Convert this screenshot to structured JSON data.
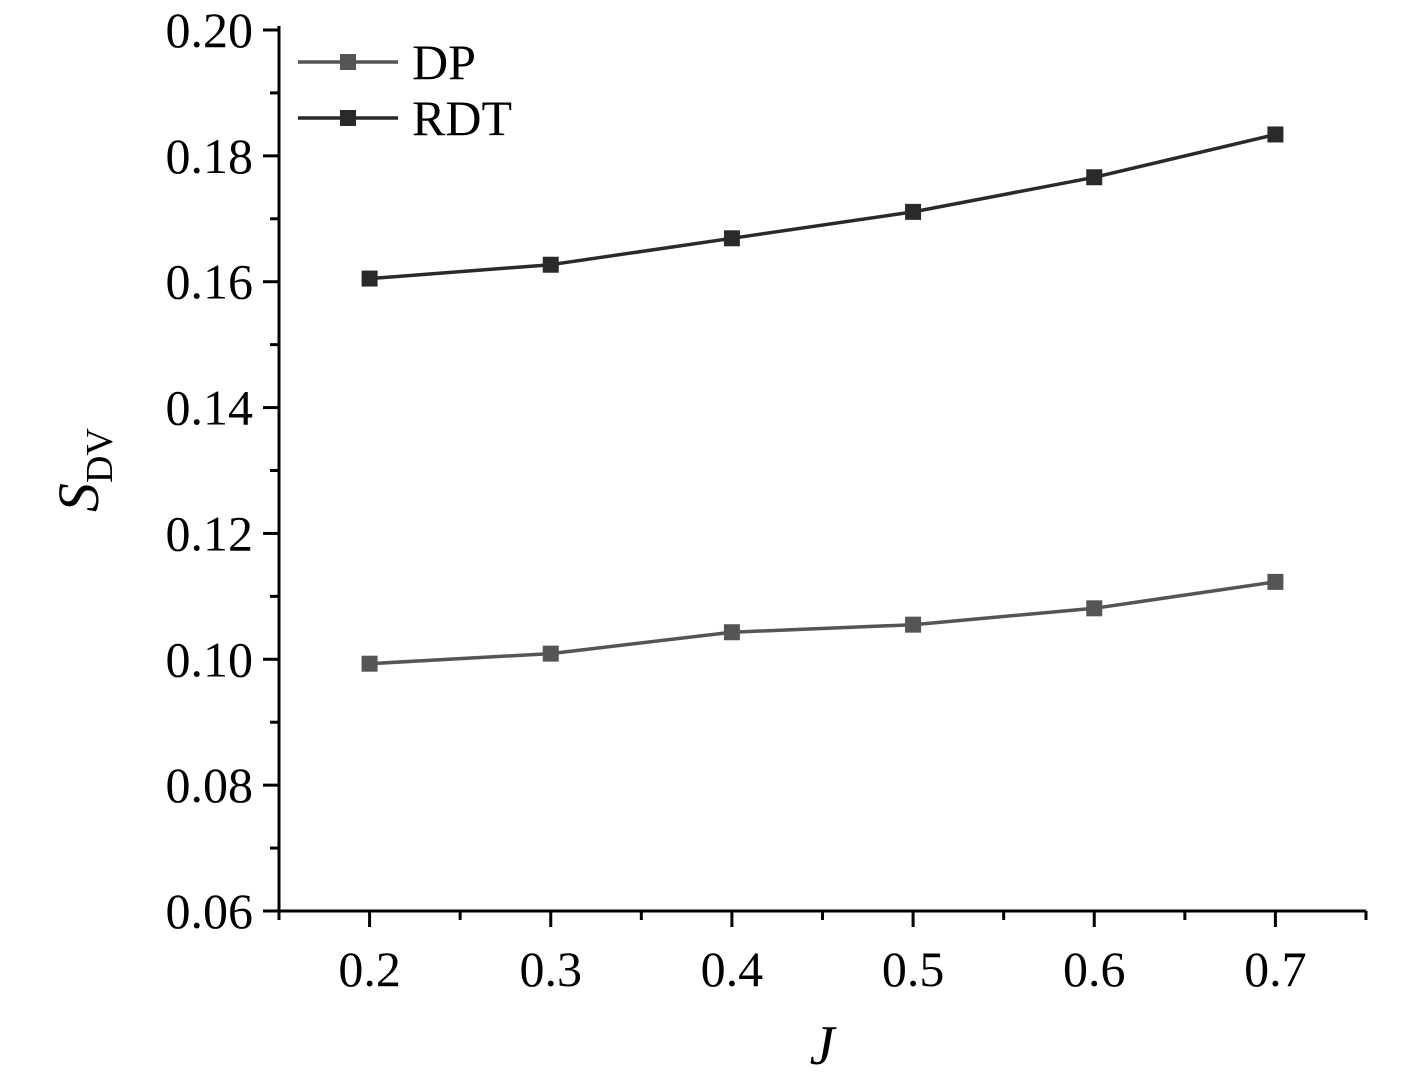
{
  "chart_data": {
    "type": "line",
    "title": "",
    "xlabel": "J",
    "ylabel": "S",
    "ylabel_sub": "DV",
    "x": [
      0.2,
      0.3,
      0.4,
      0.5,
      0.6,
      0.7
    ],
    "x_ticks": [
      "0.2",
      "0.3",
      "0.4",
      "0.5",
      "0.6",
      "0.7"
    ],
    "xlim": [
      0.15,
      0.75
    ],
    "ylim": [
      0.06,
      0.2
    ],
    "y_ticks": [
      "0.06",
      "0.08",
      "0.10",
      "0.12",
      "0.14",
      "0.16",
      "0.18",
      "0.20"
    ],
    "grid": false,
    "legend_position": "top-left",
    "series": [
      {
        "name": "DP",
        "values": [
          0.0993,
          0.1009,
          0.1043,
          0.1055,
          0.1081,
          0.1123
        ],
        "color": "#555555",
        "marker": "square"
      },
      {
        "name": "RDT",
        "values": [
          0.1605,
          0.1627,
          0.1669,
          0.1711,
          0.1766,
          0.1834
        ],
        "color": "#2a2a2a",
        "marker": "square"
      }
    ]
  }
}
